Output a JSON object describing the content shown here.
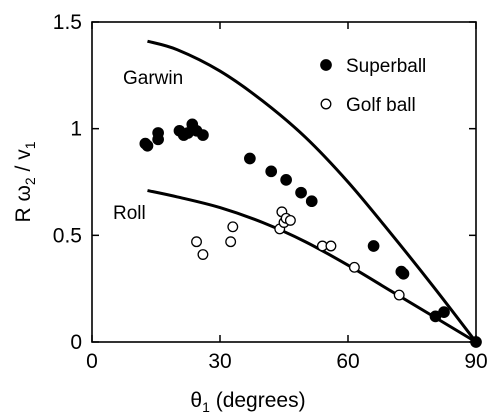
{
  "chart_data": {
    "type": "scatter",
    "xlabel": {
      "symbol": "θ",
      "subscript": "1",
      "text": " (degrees)"
    },
    "ylabel": {
      "prefix": "R ω",
      "sub1": "2",
      "middle": " / v",
      "sub2": "1"
    },
    "xlim": [
      0,
      90
    ],
    "ylim": [
      0,
      1.5
    ],
    "x_ticks": [
      0,
      30,
      60,
      90
    ],
    "x_tick_labels": [
      "0",
      "30",
      "60",
      "90"
    ],
    "y_ticks": [
      0,
      0.5,
      1,
      1.5
    ],
    "y_tick_labels": [
      "0",
      "0.5",
      "1",
      "1.5"
    ],
    "grid": false,
    "legend_position": "top-right",
    "series": [
      {
        "name": "Superball",
        "marker": "filled-circle",
        "points": [
          [
            12.5,
            0.93
          ],
          [
            13,
            0.92
          ],
          [
            15.5,
            0.95
          ],
          [
            15.5,
            0.98
          ],
          [
            20.5,
            0.99
          ],
          [
            21.5,
            0.97
          ],
          [
            22.5,
            0.98
          ],
          [
            23.5,
            1.02
          ],
          [
            24.5,
            0.99
          ],
          [
            26,
            0.97
          ],
          [
            37,
            0.86
          ],
          [
            42,
            0.8
          ],
          [
            45.5,
            0.76
          ],
          [
            49,
            0.7
          ],
          [
            51.5,
            0.66
          ],
          [
            66,
            0.45
          ],
          [
            72.5,
            0.33
          ],
          [
            73,
            0.32
          ],
          [
            80.5,
            0.12
          ],
          [
            82.5,
            0.14
          ],
          [
            90,
            0.0
          ]
        ]
      },
      {
        "name": "Golf ball",
        "marker": "open-circle",
        "points": [
          [
            24.5,
            0.47
          ],
          [
            26,
            0.41
          ],
          [
            32.5,
            0.47
          ],
          [
            33,
            0.54
          ],
          [
            44,
            0.53
          ],
          [
            44.5,
            0.61
          ],
          [
            45,
            0.56
          ],
          [
            45.5,
            0.58
          ],
          [
            46.5,
            0.57
          ],
          [
            54,
            0.45
          ],
          [
            56,
            0.45
          ],
          [
            61.5,
            0.35
          ],
          [
            72,
            0.22
          ]
        ]
      }
    ],
    "curves": [
      {
        "label": "Garwin",
        "points": [
          [
            13,
            1.41
          ],
          [
            20,
            1.37
          ],
          [
            30,
            1.27
          ],
          [
            40,
            1.13
          ],
          [
            50,
            0.96
          ],
          [
            60,
            0.75
          ],
          [
            70,
            0.51
          ],
          [
            80,
            0.26
          ],
          [
            90,
            0.0
          ]
        ]
      },
      {
        "label": "Roll",
        "points": [
          [
            13,
            0.71
          ],
          [
            20,
            0.68
          ],
          [
            30,
            0.63
          ],
          [
            40,
            0.56
          ],
          [
            50,
            0.47
          ],
          [
            60,
            0.36
          ],
          [
            70,
            0.24
          ],
          [
            80,
            0.12
          ],
          [
            90,
            0.0
          ]
        ]
      }
    ]
  }
}
